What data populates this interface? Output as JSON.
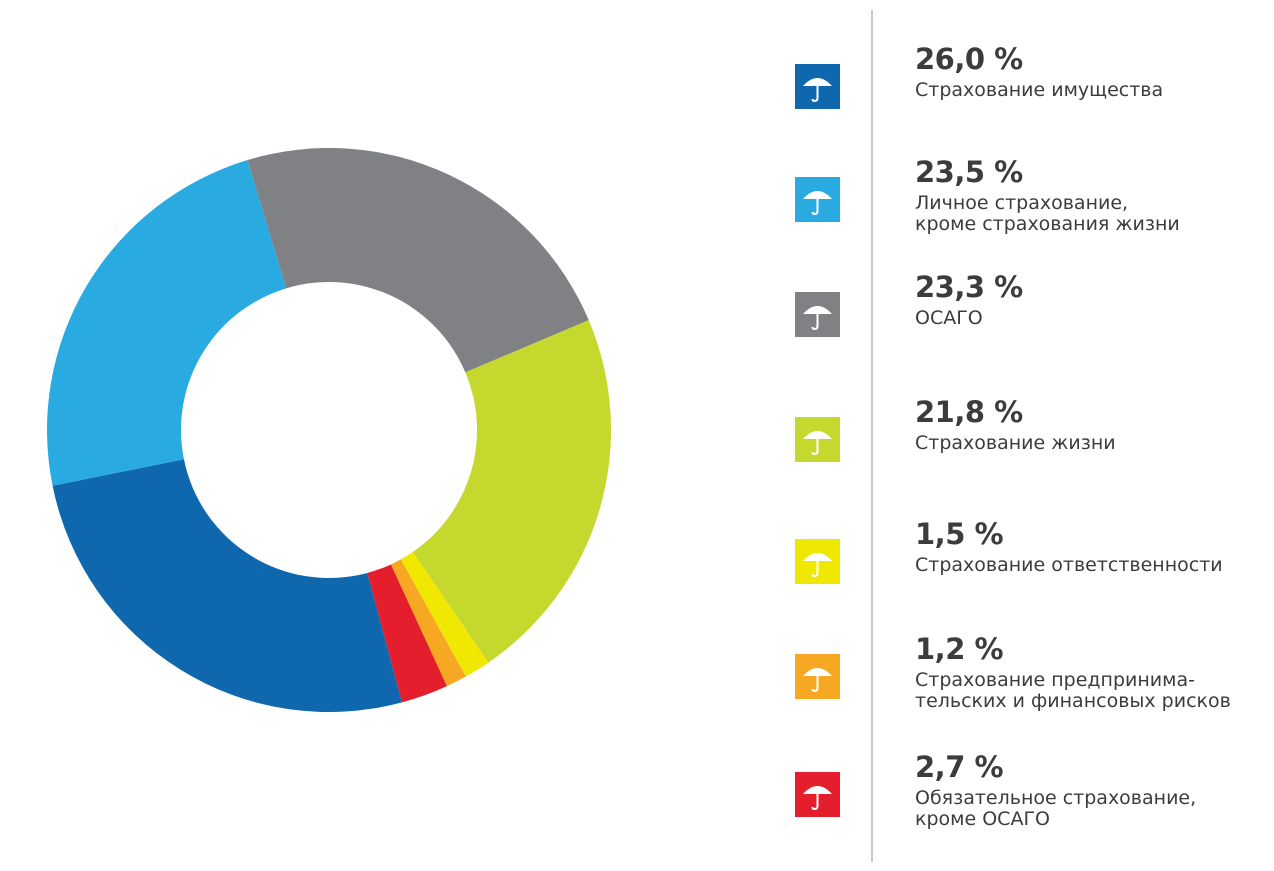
{
  "chart_data": {
    "type": "donut",
    "series": [
      {
        "name": "Страхование имущества",
        "color": "#0f67ad",
        "values": [
          26.0
        ],
        "value_labels": [
          "26,0 %"
        ]
      },
      {
        "name": "Личное страхование,\nкроме страхования жизни",
        "color": "#29abe2",
        "values": [
          23.5
        ],
        "value_labels": [
          "23,5 %"
        ]
      },
      {
        "name": "ОСАГО",
        "color": "#808184",
        "values": [
          23.3
        ],
        "value_labels": [
          "23,3 %"
        ]
      },
      {
        "name": "Страхование жизни",
        "color": "#c4d82e",
        "values": [
          21.8
        ],
        "value_labels": [
          "21,8 %"
        ]
      },
      {
        "name": "Страхование ответственности",
        "color": "#f0e800",
        "values": [
          1.5
        ],
        "value_labels": [
          "1,5 %"
        ]
      },
      {
        "name": "Страхование предпринима-\nтельских и финансовых рисков",
        "color": "#f7a823",
        "values": [
          1.2
        ],
        "value_labels": [
          "1,2 %"
        ]
      },
      {
        "name": "Обязательное страхование,\nкроме ОСАГО",
        "color": "#e41e2c",
        "values": [
          2.7
        ],
        "value_labels": [
          "2,7 %"
        ]
      }
    ]
  }
}
